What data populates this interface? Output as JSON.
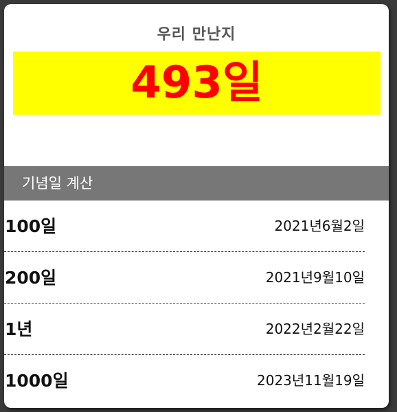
{
  "header": {
    "title": "우리 만난지",
    "days_count": "493일"
  },
  "anniversary": {
    "section_title": "기념일 계산",
    "items": [
      {
        "label": "100일",
        "date": "2021년6월2일"
      },
      {
        "label": "200일",
        "date": "2021년9월10일"
      },
      {
        "label": "1년",
        "date": "2022년2월22일"
      },
      {
        "label": "1000일",
        "date": "2023년11월19일"
      }
    ]
  },
  "colors": {
    "highlight_bg": "#ffff00",
    "count_text": "#ff0000",
    "section_bg": "#777777"
  }
}
